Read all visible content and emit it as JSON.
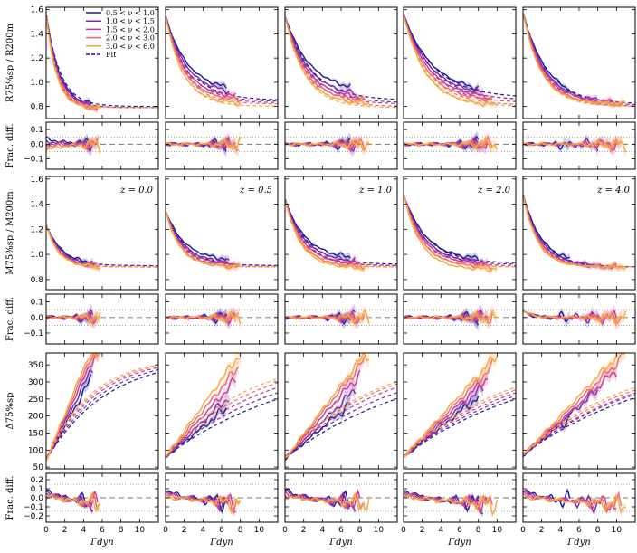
{
  "chart_data": {
    "type": "line",
    "columns": [
      {
        "z_label": "z = 0.0",
        "xlim": [
          0,
          12
        ]
      },
      {
        "z_label": "z = 0.5",
        "xlim": [
          0,
          12
        ]
      },
      {
        "z_label": "z = 1.0",
        "xlim": [
          0,
          12
        ]
      },
      {
        "z_label": "z = 2.0",
        "xlim": [
          0,
          12
        ]
      },
      {
        "z_label": "z = 4.0",
        "xlim": [
          0,
          12
        ]
      }
    ],
    "x_ticks": [
      0,
      2,
      4,
      6,
      8,
      10
    ],
    "x_tick_labels": [
      "0",
      "2",
      "4",
      "6",
      "8",
      "10"
    ],
    "xlabel": "Γdyn",
    "legend": {
      "placement": "upper-right of first panel",
      "entries": [
        {
          "label": "0.5 < ν < 1.0",
          "color": "#1f1c8f",
          "style": "solid"
        },
        {
          "label": "1.0 < ν < 1.5",
          "color": "#7a2aa8",
          "style": "solid"
        },
        {
          "label": "1.5 < ν < 2.0",
          "color": "#c23a9a",
          "style": "solid"
        },
        {
          "label": "2.0 < ν < 3.0",
          "color": "#f06a6a",
          "style": "solid"
        },
        {
          "label": "3.0 < ν < 6.0",
          "color": "#f7a840",
          "style": "solid"
        },
        {
          "label": "Fit",
          "color": "#1f1c8f",
          "style": "dashed"
        }
      ]
    },
    "rows": [
      {
        "name": "R",
        "ylabel": "R75%sp / R200m",
        "ylim": [
          0.7,
          1.62
        ],
        "yticks": [
          0.8,
          1.0,
          1.2,
          1.4,
          1.6
        ],
        "ytick_labels": [
          "0.8",
          "1.0",
          "1.2",
          "1.4",
          "1.6"
        ],
        "start": [
          1.57,
          1.55,
          1.55,
          1.56,
          1.58
        ],
        "end": [
          [
            0.79,
            0.79,
            0.78,
            0.78,
            0.78
          ],
          [
            0.92,
            0.9,
            0.87,
            0.85,
            0.82
          ],
          [
            0.92,
            0.88,
            0.86,
            0.84,
            0.82
          ],
          [
            0.9,
            0.88,
            0.86,
            0.84,
            0.8
          ],
          [
            0.84,
            0.83,
            0.83,
            0.82,
            0.82
          ]
        ],
        "rate": [
          0.7,
          0.42,
          0.38,
          0.32,
          0.4
        ],
        "fit_end": [
          [
            0.8,
            0.79,
            0.79,
            0.79,
            0.79
          ],
          [
            0.85,
            0.84,
            0.83,
            0.82,
            0.8
          ],
          [
            0.85,
            0.83,
            0.82,
            0.8,
            0.79
          ],
          [
            0.87,
            0.85,
            0.83,
            0.81,
            0.8
          ],
          [
            0.82,
            0.81,
            0.8,
            0.8,
            0.8
          ]
        ],
        "xmax": [
          [
            4.8,
            5.0,
            5.5,
            5.6,
            5.8
          ],
          [
            6.5,
            6.8,
            7.5,
            7.8,
            8.0
          ],
          [
            7.0,
            7.5,
            8.0,
            8.5,
            9.0
          ],
          [
            8.0,
            8.5,
            9.0,
            9.5,
            10.0
          ],
          [
            5.0,
            8.0,
            10.0,
            10.5,
            11.0
          ]
        ]
      },
      {
        "name": "R_frac",
        "ylabel": "Frac. diff.",
        "ylim": [
          -0.17,
          0.15
        ],
        "yticks": [
          -0.1,
          0.0,
          0.1
        ],
        "ytick_labels": [
          "−0.1",
          "0.0",
          "0.1"
        ],
        "reflines": [
          0.05,
          -0.05
        ]
      },
      {
        "name": "M",
        "ylabel": "M75%sp / M200m",
        "ylim": [
          0.72,
          1.62
        ],
        "yticks": [
          0.8,
          1.0,
          1.2,
          1.4,
          1.6
        ],
        "ytick_labels": [
          "0.8",
          "1.0",
          "1.2",
          "1.4",
          "1.6"
        ],
        "start": [
          1.24,
          1.35,
          1.44,
          1.48,
          1.48
        ],
        "end": [
          [
            0.92,
            0.91,
            0.9,
            0.9,
            0.9
          ],
          [
            0.95,
            0.93,
            0.92,
            0.9,
            0.9
          ],
          [
            0.96,
            0.94,
            0.92,
            0.9,
            0.89
          ],
          [
            0.95,
            0.93,
            0.92,
            0.9,
            0.88
          ],
          [
            0.92,
            0.91,
            0.9,
            0.9,
            0.9
          ]
        ],
        "rate": [
          0.6,
          0.5,
          0.45,
          0.42,
          0.5
        ],
        "fit_end": [
          [
            0.91,
            0.91,
            0.9,
            0.9,
            0.9
          ],
          [
            0.91,
            0.91,
            0.9,
            0.9,
            0.9
          ],
          [
            0.92,
            0.91,
            0.91,
            0.9,
            0.9
          ],
          [
            0.93,
            0.92,
            0.91,
            0.9,
            0.9
          ],
          [
            0.9,
            0.9,
            0.9,
            0.9,
            0.9
          ]
        ],
        "xmax": [
          [
            4.8,
            5.0,
            5.5,
            5.6,
            5.8
          ],
          [
            6.5,
            6.8,
            7.5,
            7.8,
            8.0
          ],
          [
            7.0,
            7.5,
            8.0,
            8.5,
            9.0
          ],
          [
            8.0,
            8.5,
            9.0,
            9.5,
            10.0
          ],
          [
            5.0,
            8.0,
            10.0,
            10.5,
            11.0
          ]
        ]
      },
      {
        "name": "M_frac",
        "ylabel": "Frac. diff.",
        "ylim": [
          -0.17,
          0.15
        ],
        "yticks": [
          -0.1,
          0.0,
          0.1
        ],
        "ytick_labels": [
          "−0.1",
          "0.0",
          "0.1"
        ],
        "reflines": [
          0.05,
          -0.05
        ]
      },
      {
        "name": "Delta",
        "ylabel": "Δ75%sp",
        "ylim": [
          45,
          385
        ],
        "yticks": [
          50,
          100,
          150,
          200,
          250,
          300,
          350
        ],
        "ytick_labels": [
          "50",
          "100",
          "150",
          "200",
          "250",
          "300",
          "350"
        ],
        "start": [
          70,
          80,
          75,
          80,
          85
        ],
        "slope": [
          [
            50,
            55,
            60,
            64,
            68
          ],
          [
            22,
            26,
            30,
            34,
            38
          ],
          [
            23,
            27,
            31,
            34,
            36
          ],
          [
            22,
            24,
            26,
            28,
            30
          ],
          [
            22,
            24,
            25,
            27,
            29
          ]
        ],
        "cap": [
          375,
          380,
          380,
          380,
          380
        ],
        "xmax": [
          [
            4.8,
            5.0,
            5.5,
            5.6,
            5.8
          ],
          [
            6.5,
            6.8,
            7.5,
            7.8,
            8.0
          ],
          [
            7.0,
            7.5,
            8.0,
            8.5,
            9.0
          ],
          [
            8.0,
            8.5,
            9.0,
            9.5,
            10.0
          ],
          [
            5.0,
            8.0,
            10.0,
            10.5,
            11.0
          ]
        ]
      },
      {
        "name": "D_frac",
        "ylabel": "Frac. diff.",
        "ylim": [
          -0.27,
          0.27
        ],
        "yticks": [
          -0.2,
          -0.1,
          0.0,
          0.1,
          0.2
        ],
        "ytick_labels": [
          "−0.2",
          "−0.1",
          "0.0",
          "0.1",
          "0.2"
        ],
        "reflines": [
          0.15,
          -0.15
        ]
      }
    ]
  }
}
